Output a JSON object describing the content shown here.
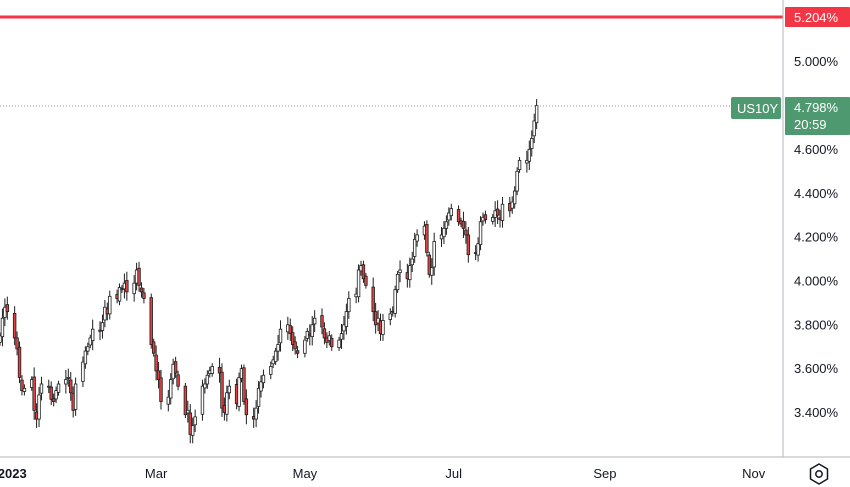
{
  "chart_data": {
    "type": "candlestick",
    "symbol": "US10Y",
    "y_unit": "%",
    "ylim": [
      3.2,
      5.3
    ],
    "y_ticks": [
      "5.000%",
      "4.800%",
      "4.600%",
      "4.400%",
      "4.200%",
      "4.000%",
      "3.800%",
      "3.600%",
      "3.400%"
    ],
    "y_tick_values": [
      5.0,
      4.8,
      4.6,
      4.4,
      4.2,
      4.0,
      3.8,
      3.6,
      3.4
    ],
    "x_range": [
      "2022-12-27",
      "2023-11-13"
    ],
    "x_ticks": [
      {
        "label": "2023",
        "date": "2023-01-01",
        "bold": true
      },
      {
        "label": "Mar",
        "date": "2023-03-01",
        "bold": false
      },
      {
        "label": "May",
        "date": "2023-05-01",
        "bold": false
      },
      {
        "label": "Jul",
        "date": "2023-07-01",
        "bold": false
      },
      {
        "label": "Sep",
        "date": "2023-09-01",
        "bold": false
      },
      {
        "label": "Nov",
        "date": "2023-11-01",
        "bold": false
      }
    ],
    "series": [
      {
        "start_date": "2022-12-27",
        "closes": [
          3.75,
          3.83,
          3.88,
          3.86,
          3.74,
          3.69,
          3.56,
          3.5,
          3.51,
          3.55,
          3.41,
          3.37,
          3.48,
          3.53,
          3.52,
          3.46,
          3.45,
          3.5,
          3.53,
          3.55,
          3.56,
          3.49,
          3.41,
          3.53,
          3.63,
          3.68,
          3.7,
          3.74,
          3.78,
          3.77,
          3.81,
          3.88,
          3.85,
          3.93,
          3.92,
          3.97,
          3.96,
          3.99,
          3.95,
          3.99,
          4.05,
          3.98,
          3.95,
          3.92,
          3.71,
          3.67,
          3.59,
          3.55,
          3.45,
          3.47,
          3.55,
          3.62,
          3.58,
          3.52,
          3.39,
          3.41,
          3.3,
          3.34,
          3.38,
          3.52,
          3.53,
          3.57,
          3.59,
          3.61,
          3.58,
          3.42,
          3.4,
          3.49,
          3.52,
          3.44,
          3.56,
          3.6,
          3.45,
          3.39,
          3.37,
          3.42,
          3.51,
          3.54,
          3.57,
          3.61,
          3.64,
          3.68,
          3.71,
          3.78,
          3.8,
          3.76,
          3.71,
          3.69,
          3.67,
          3.73,
          3.77,
          3.75,
          3.8,
          3.83,
          3.79,
          3.74,
          3.72,
          3.75,
          3.7,
          3.73,
          3.76,
          3.8,
          3.86,
          3.92,
          3.94,
          4.05,
          4.07,
          4.01,
          3.98,
          3.86,
          3.8,
          3.83,
          3.76,
          3.82,
          3.85,
          3.86,
          3.96,
          4.03,
          4.05,
          4.01,
          4.07,
          4.1,
          4.19,
          4.21,
          4.25,
          4.13,
          4.03,
          4.06,
          4.18,
          4.21,
          4.24,
          4.27,
          4.31,
          4.33,
          4.27,
          4.26,
          4.24,
          4.21,
          4.12,
          4.13,
          4.17,
          4.27,
          4.29,
          4.28,
          4.29,
          4.32,
          4.3,
          4.28,
          4.35,
          4.32,
          4.36,
          4.41,
          4.5,
          4.55,
          4.55,
          4.6,
          4.65,
          4.73,
          4.8
        ]
      }
    ],
    "reference_line": {
      "value": 5.204,
      "label": "5.204%",
      "color": "#f23645"
    },
    "last_price": {
      "symbol": "US10Y",
      "label": "4.798%",
      "countdown": "20:59",
      "color": "#4f9970",
      "value": 4.798
    },
    "colors": {
      "up": "#ffffff",
      "down": "#e04040",
      "outline": "#1e1e1e",
      "axis_line": "#b2b5be",
      "text": "#131722",
      "price_line": "#9598a1"
    },
    "grid": false,
    "settings_icon": "hexagon-gear-icon"
  }
}
